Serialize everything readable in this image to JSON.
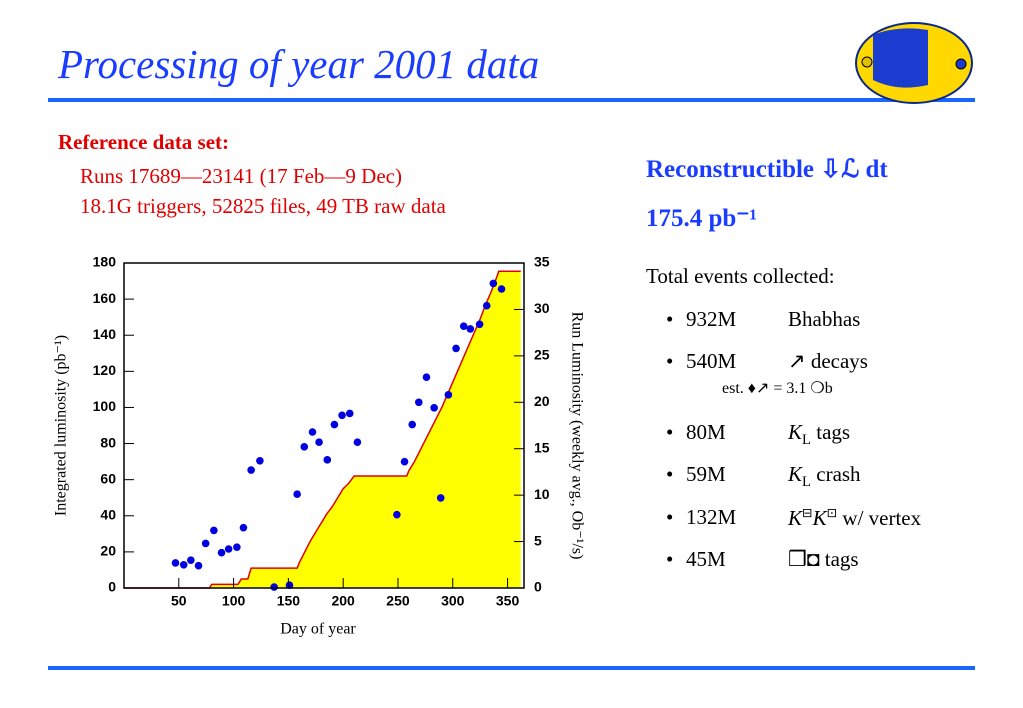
{
  "header": {
    "title": "Processing of year 2001 data"
  },
  "reference": {
    "heading": "Reference data set:",
    "lines": [
      "Runs 17689—23141 (17 Feb—9 Dec)",
      "18.1G triggers, 52825 files, 49 TB raw data"
    ]
  },
  "summary": {
    "heading": "Reconstructible ⇩ℒ dt",
    "value": "175.4 pb⁻¹",
    "events_heading": "Total events collected:",
    "items": [
      {
        "count": "932M",
        "label": [
          {
            "t": "Bhabhas"
          }
        ]
      },
      {
        "count": "540M",
        "label": [
          {
            "t": "↗ decays"
          }
        ],
        "note": "est. ♦↗ = 3.1 ❍b"
      },
      {
        "count": "80M",
        "label": [
          {
            "t": "K",
            "s": "i"
          },
          {
            "t": "L",
            "s": "sub"
          },
          {
            "t": " tags"
          }
        ]
      },
      {
        "count": "59M",
        "label": [
          {
            "t": "K",
            "s": "i"
          },
          {
            "t": "L",
            "s": "sub"
          },
          {
            "t": " crash"
          }
        ]
      },
      {
        "count": "132M",
        "label": [
          {
            "t": "K",
            "s": "i"
          },
          {
            "t": "⊟",
            "s": "sup"
          },
          {
            "t": "K",
            "s": "i"
          },
          {
            "t": "⊡",
            "s": "sup"
          },
          {
            "t": " w/ vertex"
          }
        ]
      },
      {
        "count": "45M",
        "label": [
          {
            "t": "❒◘ tags"
          }
        ]
      }
    ]
  },
  "chart_data": {
    "type": "combo",
    "x_label": "Day of year",
    "y_label": "Integrated luminosity (pb⁻¹)",
    "y2_label": "Run Luminosity (weekly avg., Ob⁻¹/s)",
    "xlim": [
      0,
      365
    ],
    "xticks": [
      50,
      100,
      150,
      200,
      250,
      300,
      350
    ],
    "ylim": [
      0,
      180
    ],
    "yticks": [
      0,
      20,
      40,
      60,
      80,
      100,
      120,
      140,
      160,
      180
    ],
    "y2lim": [
      0,
      35
    ],
    "y2ticks": [
      0,
      5,
      10,
      15,
      20,
      25,
      30,
      35
    ],
    "series": [
      {
        "type": "area",
        "color": "#ffff00",
        "line_color": "#e00000",
        "x": [
          0,
          78,
          80,
          104,
          107,
          113,
          116,
          158,
          160,
          165,
          170,
          175,
          180,
          185,
          190,
          195,
          200,
          205,
          210,
          212,
          258,
          260,
          265,
          270,
          275,
          280,
          285,
          290,
          295,
          300,
          305,
          310,
          315,
          320,
          325,
          330,
          335,
          340,
          342,
          362
        ],
        "values": [
          0,
          0,
          2,
          2,
          5,
          5,
          11,
          11,
          14,
          20,
          26,
          31,
          36,
          41,
          45,
          50,
          55,
          58,
          62,
          62,
          62,
          65,
          70,
          76,
          82,
          88,
          94,
          100,
          107,
          114,
          121,
          128,
          135,
          142,
          149,
          157,
          164,
          172,
          175.4,
          175.4
        ]
      },
      {
        "type": "scatter",
        "axis": "y2",
        "color": "#0000e0",
        "x": [
          47,
          54.5,
          61,
          68,
          74.5,
          82,
          89,
          95.5,
          103,
          109,
          116,
          124,
          137,
          151,
          158,
          164.5,
          172,
          178,
          185.5,
          192,
          199,
          206,
          213,
          249,
          256,
          263,
          269,
          276,
          283,
          289,
          296,
          303,
          310,
          316,
          324.5,
          331,
          337,
          344.5
        ],
        "values": [
          2.7,
          2.5,
          3.0,
          2.4,
          4.8,
          6.2,
          3.8,
          4.2,
          4.4,
          6.5,
          12.7,
          13.7,
          0.1,
          0.3,
          10.1,
          15.2,
          16.8,
          15.7,
          13.8,
          17.6,
          18.6,
          18.8,
          15.7,
          7.9,
          13.6,
          17.6,
          20.0,
          22.7,
          19.4,
          9.7,
          20.8,
          25.8,
          28.2,
          27.9,
          28.4,
          30.4,
          32.8,
          32.2
        ]
      }
    ]
  }
}
